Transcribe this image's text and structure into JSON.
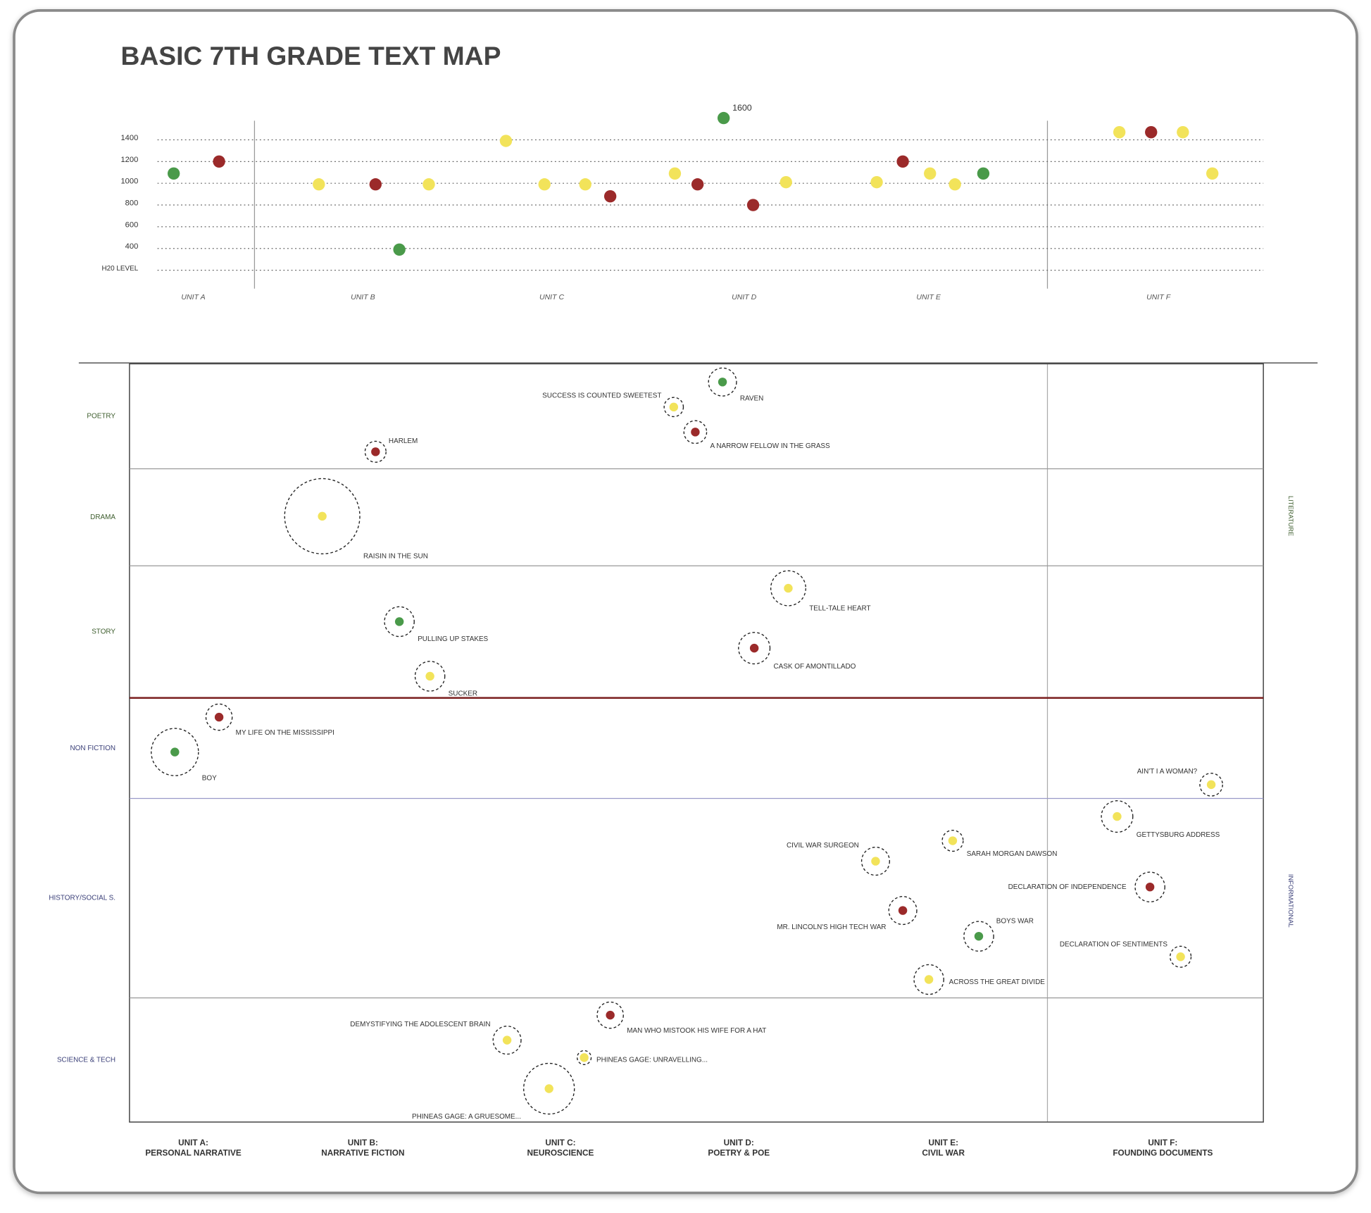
{
  "chart_data": [
    {
      "type": "scatter",
      "title": "BASIC 7TH GRADE TEXT MAP",
      "categories": [
        "UNIT A",
        "UNIT B",
        "UNIT C",
        "UNIT D",
        "UNIT E",
        "UNIT F"
      ],
      "x": [
        3.9,
        7.9,
        16.7,
        21.7,
        23.8,
        26.4,
        33.2,
        36.6,
        40.2,
        42.4,
        48.1,
        50.1,
        52.4,
        55.0,
        57.9,
        65.9,
        68.2,
        70.6,
        72.8,
        75.3,
        87.3,
        90.1,
        92.9,
        95.5
      ],
      "values": [
        1090,
        1200,
        990,
        990,
        390,
        990,
        1390,
        990,
        990,
        880,
        1090,
        990,
        1600,
        800,
        1010,
        1010,
        1200,
        1090,
        990,
        1090,
        1470,
        1470,
        1470,
        1090
      ],
      "colors": [
        "#4a9a4a",
        "#9b2a2a",
        "#f2e35a",
        "#9b2a2a",
        "#4a9a4a",
        "#f2e35a",
        "#f2e35a",
        "#f2e35a",
        "#f2e35a",
        "#9b2a2a",
        "#f2e35a",
        "#9b2a2a",
        "#4a9a4a",
        "#9b2a2a",
        "#f2e35a",
        "#f2e35a",
        "#9b2a2a",
        "#f2e35a",
        "#f2e35a",
        "#4a9a4a",
        "#f2e35a",
        "#9b2a2a",
        "#f2e35a",
        "#f2e35a"
      ],
      "annotation": "1600",
      "xlim": [
        0,
        100
      ],
      "ylim": [
        200,
        1600
      ],
      "yticks": [
        {
          "value": 200,
          "label": "H20 LEVEL"
        },
        400,
        600,
        800,
        1000,
        1200,
        1400
      ],
      "grid": true
    },
    {
      "type": "bubble",
      "x_labels": [
        [
          "UNIT A:",
          "PERSONAL NARRATIVE"
        ],
        [
          "UNIT B:",
          "NARRATIVE FICTION"
        ],
        [
          "UNIT C:",
          "NEUROSCIENCE"
        ],
        [
          "UNIT D:",
          "POETRY & POE"
        ],
        [
          "UNIT E:",
          "CIVIL WAR"
        ],
        [
          "UNIT F:",
          "FOUNDING DOCUMENTS"
        ]
      ],
      "groups": [
        "LITERATURE",
        "INFORMATIONAL"
      ],
      "rows": [
        {
          "name": "POETRY",
          "group": 0
        },
        {
          "name": "DRAMA",
          "group": 0
        },
        {
          "name": "STORY",
          "group": 0
        },
        {
          "name": "NON FICTION",
          "group": 1
        },
        {
          "name": "HISTORY/SOCIAL S.",
          "group": 1
        },
        {
          "name": "SCIENCE & TECH",
          "group": 1
        }
      ],
      "xlim": [
        0,
        100
      ],
      "ylim": [
        0,
        100
      ],
      "points": [
        {
          "name": "RAVEN",
          "color": "#4a9a4a",
          "x": 52.3,
          "y": 2.4,
          "size": 16,
          "label_side": "below-right"
        },
        {
          "name": "SUCCESS IS COUNTED SWEETEST",
          "color": "#f2e35a",
          "x": 48.0,
          "y": 5.7,
          "size": 11,
          "label_side": "above-left"
        },
        {
          "name": "A NARROW FELLOW IN THE GRASS",
          "color": "#9b2a2a",
          "x": 49.9,
          "y": 9.0,
          "size": 13,
          "label_side": "below-right"
        },
        {
          "name": "HARLEM",
          "color": "#9b2a2a",
          "x": 21.7,
          "y": 11.6,
          "size": 12,
          "label_side": "above-right"
        },
        {
          "name": "RAISIN IN THE SUN",
          "color": "#f2e35a",
          "x": 17.0,
          "y": 20.1,
          "size": 43,
          "label_side": "below-right"
        },
        {
          "name": "TELL-TALE HEART",
          "color": "#f2e35a",
          "x": 58.1,
          "y": 29.6,
          "size": 20,
          "label_side": "below-right"
        },
        {
          "name": "PULLING UP STAKES",
          "color": "#4a9a4a",
          "x": 23.8,
          "y": 34.0,
          "size": 17,
          "label_side": "below-right"
        },
        {
          "name": "CASK OF AMONTILLADO",
          "color": "#9b2a2a",
          "x": 55.1,
          "y": 37.5,
          "size": 18,
          "label_side": "below-right"
        },
        {
          "name": "SUCKER",
          "color": "#f2e35a",
          "x": 26.5,
          "y": 41.2,
          "size": 17,
          "label_side": "below-right"
        },
        {
          "name": "MY LIFE ON THE MISSISSIPPI",
          "color": "#9b2a2a",
          "x": 7.9,
          "y": 46.6,
          "size": 15,
          "label_side": "below-right"
        },
        {
          "name": "BOY",
          "color": "#4a9a4a",
          "x": 4.0,
          "y": 51.2,
          "size": 27,
          "label_side": "below-right"
        },
        {
          "name": "AIN'T I A WOMAN?",
          "color": "#f2e35a",
          "x": 95.4,
          "y": 55.5,
          "size": 13,
          "label_side": "above-left"
        },
        {
          "name": "GETTYSBURG ADDRESS",
          "color": "#f2e35a",
          "x": 87.1,
          "y": 59.7,
          "size": 18,
          "label_side": "below-right"
        },
        {
          "name": "SARAH MORGAN DAWSON",
          "color": "#f2e35a",
          "x": 72.6,
          "y": 62.9,
          "size": 12,
          "label_side": "below-right"
        },
        {
          "name": "CIVIL WAR SURGEON",
          "color": "#f2e35a",
          "x": 65.8,
          "y": 65.6,
          "size": 16,
          "label_side": "above-left"
        },
        {
          "name": "DECLARATION OF INDEPENDENCE",
          "color": "#9b2a2a",
          "x": 90.0,
          "y": 69.0,
          "size": 17,
          "label_side": "left"
        },
        {
          "name": "MR. LINCOLN'S HIGH TECH WAR",
          "color": "#9b2a2a",
          "x": 68.2,
          "y": 72.1,
          "size": 16,
          "label_side": "below-left"
        },
        {
          "name": "BOYS WAR",
          "color": "#4a9a4a",
          "x": 74.9,
          "y": 75.5,
          "size": 17,
          "label_side": "above-right"
        },
        {
          "name": "DECLARATION OF SENTIMENTS",
          "color": "#f2e35a",
          "x": 92.7,
          "y": 78.2,
          "size": 12,
          "label_side": "above-left"
        },
        {
          "name": "ACROSS THE GREAT DIVIDE",
          "color": "#f2e35a",
          "x": 70.5,
          "y": 81.2,
          "size": 17,
          "label_side": "right"
        },
        {
          "name": "DEMYSTIFYING THE ADOLESCENT BRAIN",
          "color": "#f2e35a",
          "x": 33.3,
          "y": 89.2,
          "size": 16,
          "label_side": "above-left"
        },
        {
          "name": "MAN WHO MISTOOK HIS WIFE FOR A HAT",
          "color": "#9b2a2a",
          "x": 42.4,
          "y": 85.9,
          "size": 15,
          "label_side": "below-right"
        },
        {
          "name": "PHINEAS GAGE: UNRAVELLING...",
          "color": "#f2e35a",
          "x": 40.1,
          "y": 91.5,
          "size": 8,
          "label_side": "right"
        },
        {
          "name": "PHINEAS GAGE: A GRUESOME...",
          "color": "#f2e35a",
          "x": 37.0,
          "y": 95.6,
          "size": 29,
          "label_side": "below-left"
        }
      ]
    }
  ]
}
